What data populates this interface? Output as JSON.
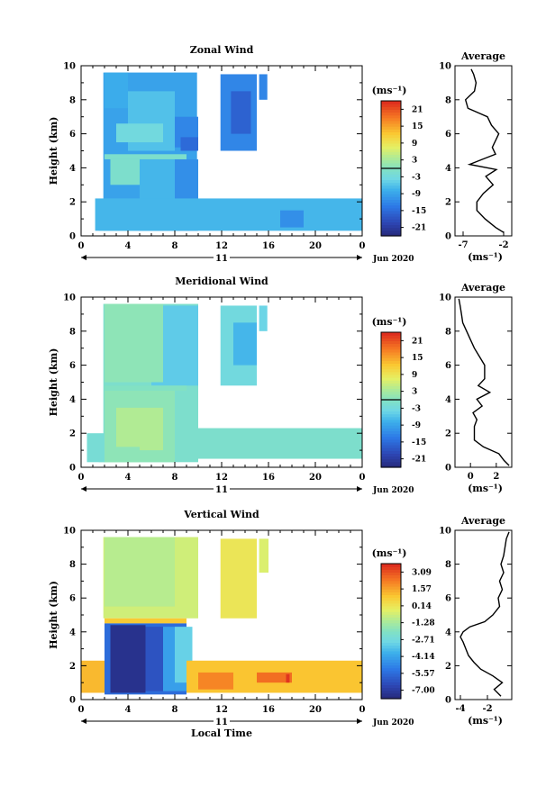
{
  "chart_data": [
    {
      "type": "heatmap",
      "title": "Zonal Wind",
      "ylabel": "Height (km)",
      "xlabel": "",
      "x_ticks": [
        "0",
        "4",
        "8",
        "12",
        "16",
        "20",
        "0"
      ],
      "y_ticks": [
        "0",
        "2",
        "4",
        "6",
        "8",
        "10"
      ],
      "xlim": [
        0,
        24
      ],
      "ylim": [
        0,
        10
      ],
      "date_day": "11",
      "date_label": "Jun 2020",
      "colorbar": {
        "unit": "(ms⁻¹)",
        "ticks": [
          "21",
          "15",
          "9",
          "3",
          "-3",
          "-9",
          "-15",
          "-21"
        ],
        "range": [
          -24,
          24
        ],
        "zero_line": 0
      },
      "average": {
        "title": "Average",
        "x_ticks": [
          "-7",
          "-2"
        ],
        "xlim": [
          -8,
          -1
        ],
        "xlabel": "(ms⁻¹)",
        "heights": [
          0.2,
          0.5,
          1.0,
          1.5,
          2.0,
          2.5,
          3.0,
          3.5,
          3.9,
          4.2,
          4.5,
          4.8,
          5.2,
          6.0,
          6.5,
          7.0,
          7.5,
          8.0,
          8.5,
          9.0,
          9.5,
          9.8
        ],
        "values": [
          -2.0,
          -3.0,
          -4.3,
          -5.3,
          -5.3,
          -4.5,
          -3.3,
          -4.2,
          -2.9,
          -6.2,
          -4.6,
          -3.0,
          -3.4,
          -2.6,
          -3.5,
          -4.0,
          -6.4,
          -6.7,
          -5.6,
          -5.4,
          -5.7,
          -6.0
        ]
      },
      "blocks": [
        {
          "t0": 1.9,
          "t1": 9.9,
          "h0": 0.3,
          "h1": 9.6,
          "v": -9
        },
        {
          "t0": 4.0,
          "t1": 8.0,
          "h0": 5.0,
          "h1": 8.5,
          "v": -6
        },
        {
          "t0": 8.0,
          "t1": 10.0,
          "h0": 5.2,
          "h1": 7.0,
          "v": -12
        },
        {
          "t0": 8.5,
          "t1": 10.0,
          "h0": 5.0,
          "h1": 5.8,
          "v": -15
        },
        {
          "t0": 2.0,
          "t1": 4.0,
          "h0": 7.5,
          "h1": 9.6,
          "v": -8
        },
        {
          "t0": 3.0,
          "t1": 7.0,
          "h0": 5.5,
          "h1": 6.6,
          "v": -3
        },
        {
          "t0": 2.5,
          "t1": 5.0,
          "h0": 3.0,
          "h1": 4.5,
          "v": -1
        },
        {
          "t0": 5.0,
          "t1": 8.0,
          "h0": 0.3,
          "h1": 4.5,
          "v": -7
        },
        {
          "t0": 8.0,
          "t1": 10.0,
          "h0": 0.3,
          "h1": 4.5,
          "v": -11
        },
        {
          "t0": 1.5,
          "t1": 4.5,
          "h0": 0.3,
          "h1": 1.5,
          "v": -3
        },
        {
          "t0": 11.9,
          "t1": 15.0,
          "h0": 5.0,
          "h1": 9.5,
          "v": -12
        },
        {
          "t0": 12.8,
          "t1": 14.5,
          "h0": 6.0,
          "h1": 8.5,
          "v": -16
        },
        {
          "t0": 15.2,
          "t1": 15.9,
          "h0": 8.0,
          "h1": 9.5,
          "v": -12
        },
        {
          "t0": 1.2,
          "t1": 24.0,
          "h0": 0.3,
          "h1": 2.2,
          "v": -7
        },
        {
          "t0": 17.0,
          "t1": 19.0,
          "h0": 0.5,
          "h1": 1.5,
          "v": -11
        },
        {
          "t0": 2.0,
          "t1": 9.0,
          "h0": 4.5,
          "h1": 4.8,
          "v": -1
        }
      ]
    },
    {
      "type": "heatmap",
      "title": "Meridional Wind",
      "ylabel": "Height (km)",
      "xlabel": "",
      "x_ticks": [
        "0",
        "4",
        "8",
        "12",
        "16",
        "20",
        "0"
      ],
      "y_ticks": [
        "0",
        "2",
        "4",
        "6",
        "8",
        "10"
      ],
      "xlim": [
        0,
        24
      ],
      "ylim": [
        0,
        10
      ],
      "date_day": "11",
      "date_label": "Jun 2020",
      "colorbar": {
        "unit": "(ms⁻¹)",
        "ticks": [
          "21",
          "15",
          "9",
          "3",
          "-3",
          "-9",
          "-15",
          "-21"
        ],
        "range": [
          -24,
          24
        ],
        "zero_line": 0
      },
      "average": {
        "title": "Average",
        "x_ticks": [
          "0",
          "2"
        ],
        "xlim": [
          -1.2,
          3.2
        ],
        "xlabel": "(ms⁻¹)",
        "heights": [
          0.1,
          0.4,
          0.8,
          1.2,
          1.6,
          2.0,
          2.4,
          2.8,
          3.2,
          3.6,
          4.0,
          4.4,
          4.8,
          5.2,
          6.0,
          6.5,
          7.0,
          7.5,
          8.0,
          8.5,
          9.0,
          9.5,
          9.9
        ],
        "values": [
          3.0,
          2.6,
          2.2,
          1.0,
          0.3,
          0.3,
          0.3,
          0.5,
          0.2,
          0.9,
          0.5,
          1.5,
          0.6,
          1.1,
          1.1,
          0.7,
          0.3,
          0.0,
          -0.3,
          -0.6,
          -0.7,
          -0.8,
          -0.9
        ]
      },
      "blocks": [
        {
          "t0": 1.9,
          "t1": 10.0,
          "h0": 0.3,
          "h1": 9.6,
          "v": -1
        },
        {
          "t0": 6.0,
          "t1": 10.0,
          "h0": 4.8,
          "h1": 9.5,
          "v": -5
        },
        {
          "t0": 2.0,
          "t1": 7.0,
          "h0": 5.0,
          "h1": 9.6,
          "v": 1
        },
        {
          "t0": 2.0,
          "t1": 8.0,
          "h0": 0.3,
          "h1": 4.5,
          "v": 1
        },
        {
          "t0": 3.0,
          "t1": 7.0,
          "h0": 1.0,
          "h1": 3.5,
          "v": 4
        },
        {
          "t0": 1.5,
          "t1": 5.0,
          "h0": 0.3,
          "h1": 1.2,
          "v": 1
        },
        {
          "t0": 11.9,
          "t1": 15.0,
          "h0": 4.8,
          "h1": 9.5,
          "v": -3
        },
        {
          "t0": 13.0,
          "t1": 15.0,
          "h0": 6.0,
          "h1": 8.5,
          "v": -7
        },
        {
          "t0": 15.2,
          "t1": 15.9,
          "h0": 8.0,
          "h1": 9.5,
          "v": -4
        },
        {
          "t0": 9.0,
          "t1": 24.0,
          "h0": 0.5,
          "h1": 2.3,
          "v": -1
        },
        {
          "t0": 0.5,
          "t1": 2.0,
          "h0": 0.3,
          "h1": 2.0,
          "v": -2
        },
        {
          "t0": 2.0,
          "t1": 9.0,
          "h0": 4.5,
          "h1": 4.8,
          "v": 0
        }
      ]
    },
    {
      "type": "heatmap",
      "title": "Vertical Wind",
      "ylabel": "Height (km)",
      "xlabel": "Local Time",
      "x_ticks": [
        "0",
        "4",
        "8",
        "12",
        "16",
        "20",
        "0"
      ],
      "y_ticks": [
        "0",
        "2",
        "4",
        "6",
        "8",
        "10"
      ],
      "xlim": [
        0,
        24
      ],
      "ylim": [
        0,
        10
      ],
      "date_day": "11",
      "date_label": "Jun 2020",
      "colorbar": {
        "unit": "(ms⁻¹)",
        "ticks": [
          "3.09",
          "1.57",
          "0.14",
          "-1.28",
          "-2.71",
          "-4.14",
          "-5.57",
          "-7.00"
        ],
        "range": [
          -7.7,
          3.8
        ],
        "zero_line": null
      },
      "average": {
        "title": "Average",
        "x_ticks": [
          "-4",
          "-2"
        ],
        "xlim": [
          -4.4,
          -0.2
        ],
        "xlabel": "(ms⁻¹)",
        "heights": [
          0.2,
          0.6,
          1.0,
          1.4,
          1.8,
          2.2,
          2.6,
          3.0,
          3.4,
          3.7,
          4.0,
          4.3,
          4.6,
          5.0,
          5.5,
          6.0,
          6.5,
          7.0,
          7.5,
          8.0,
          8.5,
          9.0,
          9.5,
          9.9
        ],
        "values": [
          -1.0,
          -1.5,
          -0.9,
          -1.6,
          -2.5,
          -3.0,
          -3.4,
          -3.6,
          -3.8,
          -4.0,
          -3.8,
          -3.3,
          -2.2,
          -1.6,
          -1.1,
          -1.2,
          -0.9,
          -1.1,
          -0.8,
          -1.0,
          -0.8,
          -0.7,
          -0.6,
          -0.4
        ]
      },
      "blocks": [
        {
          "t0": 1.9,
          "t1": 10.0,
          "h0": 4.8,
          "h1": 9.6,
          "v": -0.5
        },
        {
          "t0": 2.0,
          "t1": 8.0,
          "h0": 5.5,
          "h1": 9.6,
          "v": -0.9
        },
        {
          "t0": 2.0,
          "t1": 9.0,
          "h0": 4.5,
          "h1": 4.8,
          "v": 1.0
        },
        {
          "t0": 2.0,
          "t1": 9.0,
          "h0": 0.3,
          "h1": 4.5,
          "v": -5.5
        },
        {
          "t0": 2.5,
          "t1": 5.5,
          "h0": 0.4,
          "h1": 4.4,
          "v": -7.3
        },
        {
          "t0": 5.5,
          "t1": 7.0,
          "h0": 0.5,
          "h1": 4.3,
          "v": -6.2
        },
        {
          "t0": 7.0,
          "t1": 9.0,
          "h0": 0.5,
          "h1": 4.3,
          "v": -4.2
        },
        {
          "t0": 8.0,
          "t1": 9.5,
          "h0": 1.0,
          "h1": 4.3,
          "v": -3.0
        },
        {
          "t0": 11.9,
          "t1": 15.0,
          "h0": 4.8,
          "h1": 9.5,
          "v": 0.2
        },
        {
          "t0": 15.2,
          "t1": 16.0,
          "h0": 7.5,
          "h1": 9.5,
          "v": -0.3
        },
        {
          "t0": 0.0,
          "t1": 2.0,
          "h0": 0.4,
          "h1": 2.3,
          "v": 1.3
        },
        {
          "t0": 9.0,
          "t1": 24.0,
          "h0": 0.4,
          "h1": 2.3,
          "v": 1.1
        },
        {
          "t0": 10.0,
          "t1": 13.0,
          "h0": 0.6,
          "h1": 1.6,
          "v": 2.2
        },
        {
          "t0": 15.0,
          "t1": 18.0,
          "h0": 1.0,
          "h1": 1.6,
          "v": 2.6
        },
        {
          "t0": 17.5,
          "t1": 17.8,
          "h0": 1.0,
          "h1": 1.5,
          "v": 3.6
        }
      ]
    }
  ]
}
